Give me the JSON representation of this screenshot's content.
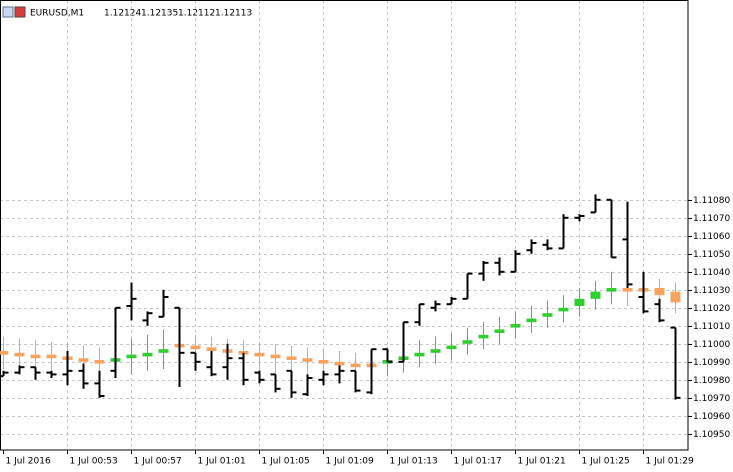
{
  "chart_data": {
    "type": "ohlc",
    "symbol": "EURUSD,M1",
    "header_values": [
      "1.12124",
      "1.12135",
      "1.12112",
      "1.12113"
    ],
    "categories": [
      "1 Jul 2016",
      null,
      null,
      null,
      "1 Jul 00:53",
      null,
      null,
      null,
      "1 Jul 00:57",
      null,
      null,
      null,
      "1 Jul 01:01",
      null,
      null,
      null,
      "1 Jul 01:05",
      null,
      null,
      null,
      "1 Jul 01:09",
      null,
      null,
      null,
      "1 Jul 01:13",
      null,
      null,
      null,
      "1 Jul 01:17",
      null,
      null,
      null,
      "1 Jul 01:21",
      null,
      null,
      null,
      "1 Jul 01:25",
      null,
      null,
      null,
      "1 Jul 01:29",
      null,
      null
    ],
    "ylim": [
      1.10941,
      1.11191
    ],
    "yticks": [
      {
        "value": 1.1095,
        "label": "1.10950"
      },
      {
        "value": 1.1096,
        "label": "1.10960"
      },
      {
        "value": 1.1097,
        "label": "1.10970"
      },
      {
        "value": 1.1098,
        "label": "1.10980"
      },
      {
        "value": 1.1099,
        "label": "1.10990"
      },
      {
        "value": 1.11,
        "label": "1.11000"
      },
      {
        "value": 1.1101,
        "label": "1.11010"
      },
      {
        "value": 1.1102,
        "label": "1.11020"
      },
      {
        "value": 1.1103,
        "label": "1.11030"
      },
      {
        "value": 1.1104,
        "label": "1.11040"
      },
      {
        "value": 1.1105,
        "label": "1.11050"
      },
      {
        "value": 1.1106,
        "label": "1.11060"
      },
      {
        "value": 1.1107,
        "label": "1.11070"
      },
      {
        "value": 1.1108,
        "label": "1.11080"
      }
    ],
    "grid": true,
    "series": [
      {
        "type": "bar",
        "color": "#000000",
        "open": [
          1.10982,
          1.10984,
          1.10987,
          1.10984,
          1.10983,
          1.10985,
          1.10978,
          1.10985,
          1.11021,
          1.11013,
          1.11015,
          1.1102,
          1.10995,
          1.10987,
          1.10987,
          1.10992,
          1.10984,
          1.10983,
          1.10985,
          1.10972,
          1.1098,
          1.10983,
          1.10985,
          1.10973,
          1.10997,
          1.1099,
          1.11012,
          1.1102,
          1.11022,
          1.11025,
          1.11039,
          1.11045,
          1.1104,
          1.11052,
          1.11055,
          1.11053,
          1.1107,
          1.11073,
          1.1108,
          1.11058,
          1.11026,
          1.11022,
          1.11009
        ],
        "high": [
          1.10985,
          1.10988,
          1.10987,
          1.10985,
          1.10996,
          1.10989,
          1.10985,
          1.1102,
          1.11034,
          1.11018,
          1.1103,
          1.1102,
          1.10995,
          1.10996,
          1.11,
          1.10995,
          1.10985,
          1.10983,
          1.10985,
          1.10983,
          1.10985,
          1.10988,
          1.10985,
          1.10997,
          1.10997,
          1.11012,
          1.11022,
          1.11024,
          1.11026,
          1.11039,
          1.11046,
          1.11048,
          1.11052,
          1.11058,
          1.11058,
          1.11072,
          1.11072,
          1.11083,
          1.1108,
          1.11079,
          1.1104,
          1.11025,
          1.11009
        ],
        "low": [
          1.10982,
          1.10983,
          1.1098,
          1.10981,
          1.10977,
          1.10975,
          1.1097,
          1.10981,
          1.11013,
          1.1101,
          1.11015,
          1.10976,
          1.10985,
          1.10982,
          1.1098,
          1.10977,
          1.10978,
          1.10973,
          1.1097,
          1.10971,
          1.10977,
          1.10978,
          1.10973,
          1.10972,
          1.1099,
          1.1099,
          1.1101,
          1.11018,
          1.11022,
          1.11025,
          1.11035,
          1.11038,
          1.1104,
          1.1105,
          1.11052,
          1.11053,
          1.11068,
          1.11073,
          1.11048,
          1.11031,
          1.11017,
          1.11012,
          1.10969
        ],
        "close": [
          1.10984,
          1.10987,
          1.10984,
          1.10983,
          1.10985,
          1.10978,
          1.10971,
          1.1102,
          1.11025,
          1.11017,
          1.11026,
          1.10995,
          1.1099,
          1.10983,
          1.10992,
          1.1098,
          1.1098,
          1.10975,
          1.10973,
          1.10981,
          1.10983,
          1.10985,
          1.10974,
          1.10997,
          1.1099,
          1.11012,
          1.11022,
          1.11022,
          1.11025,
          1.11039,
          1.11045,
          1.1104,
          1.1105,
          1.11056,
          1.11053,
          1.1107,
          1.11071,
          1.1108,
          1.11048,
          1.11033,
          1.11018,
          1.11013,
          1.1097
        ]
      },
      {
        "type": "candlestick",
        "up_color": "#32cd32",
        "down_color": "#f4a460",
        "open": [
          1.10996,
          1.10995,
          1.10994,
          1.10994,
          1.10993,
          1.10992,
          1.10991,
          1.1099,
          1.10992,
          1.10993,
          1.10995,
          1.11,
          1.10999,
          1.10998,
          1.10997,
          1.10996,
          1.10995,
          1.10994,
          1.10993,
          1.10992,
          1.10991,
          1.1099,
          1.10989,
          1.10989,
          1.10989,
          1.10991,
          1.10993,
          1.10995,
          1.10997,
          1.11,
          1.11003,
          1.11006,
          1.11009,
          1.11012,
          1.11015,
          1.11018,
          1.11021,
          1.11025,
          1.11029,
          1.11031,
          1.11031,
          1.11031,
          1.11029
        ],
        "high": [
          1.11004,
          1.11003,
          1.11002,
          1.11001,
          1.11,
          1.10999,
          1.10998,
          1.11,
          1.11003,
          1.11005,
          1.11008,
          1.11007,
          1.11005,
          1.11004,
          1.11003,
          1.11002,
          1.11001,
          1.11,
          1.10999,
          1.10998,
          1.10997,
          1.10996,
          1.10995,
          1.10996,
          1.10998,
          1.11,
          1.11002,
          1.11004,
          1.11006,
          1.11009,
          1.11012,
          1.11015,
          1.11018,
          1.11021,
          1.11024,
          1.11027,
          1.11031,
          1.11035,
          1.1104,
          1.1104,
          1.11038,
          1.11036,
          1.11034
        ],
        "low": [
          1.10986,
          1.10985,
          1.10984,
          1.10985,
          1.10984,
          1.10982,
          1.1098,
          1.10982,
          1.10983,
          1.10985,
          1.10986,
          1.10988,
          1.10987,
          1.10986,
          1.10985,
          1.10984,
          1.10983,
          1.10982,
          1.10981,
          1.1098,
          1.10981,
          1.1098,
          1.10979,
          1.1098,
          1.10982,
          1.10984,
          1.10987,
          1.10989,
          1.10991,
          1.10994,
          1.10997,
          1.11,
          1.11003,
          1.11006,
          1.11009,
          1.11012,
          1.11015,
          1.11019,
          1.11022,
          1.11021,
          1.1102,
          1.11019,
          1.11017
        ],
        "close": [
          1.10994,
          1.10993,
          1.10992,
          1.10992,
          1.10991,
          1.1099,
          1.10989,
          1.10992,
          1.10994,
          1.10995,
          1.10997,
          1.10998,
          1.10997,
          1.10996,
          1.10995,
          1.10994,
          1.10993,
          1.10992,
          1.10991,
          1.1099,
          1.10989,
          1.10988,
          1.10987,
          1.10987,
          1.10991,
          1.10993,
          1.10995,
          1.10997,
          1.10999,
          1.11002,
          1.11005,
          1.11008,
          1.11011,
          1.11014,
          1.11017,
          1.1102,
          1.11025,
          1.11029,
          1.11031,
          1.11029,
          1.11029,
          1.11027,
          1.11023
        ]
      }
    ]
  }
}
